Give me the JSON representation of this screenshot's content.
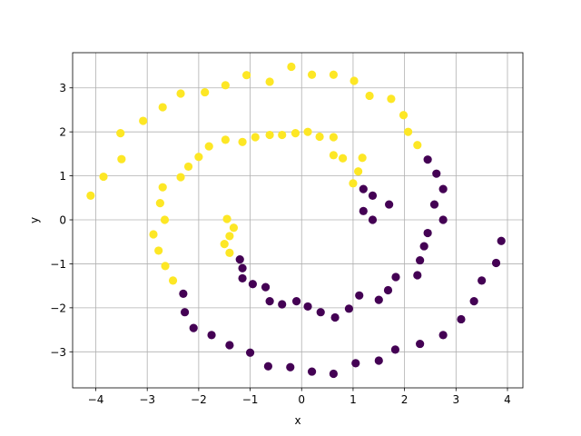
{
  "chart_data": {
    "type": "scatter",
    "title": "",
    "xlabel": "x",
    "ylabel": "y",
    "xlim": [
      -4.45,
      4.3
    ],
    "ylim": [
      -3.82,
      3.8
    ],
    "xticks": [
      -4,
      -3,
      -2,
      -1,
      0,
      1,
      2,
      3,
      4
    ],
    "yticks": [
      -3,
      -2,
      -1,
      0,
      1,
      2,
      3
    ],
    "grid": true,
    "series": [
      {
        "color": "#fde725",
        "points": [
          [
            -4.1,
            0.55
          ],
          [
            -3.85,
            0.98
          ],
          [
            -3.5,
            1.38
          ],
          [
            -3.52,
            1.97
          ],
          [
            -3.08,
            2.25
          ],
          [
            -2.7,
            2.56
          ],
          [
            -2.35,
            2.87
          ],
          [
            -1.88,
            2.9
          ],
          [
            -1.48,
            3.06
          ],
          [
            -1.07,
            3.29
          ],
          [
            -0.62,
            3.14
          ],
          [
            -0.2,
            3.48
          ],
          [
            0.2,
            3.3
          ],
          [
            0.62,
            3.3
          ],
          [
            1.02,
            3.16
          ],
          [
            1.32,
            2.82
          ],
          [
            1.74,
            2.75
          ],
          [
            1.98,
            2.38
          ],
          [
            2.07,
            2.0
          ],
          [
            2.25,
            1.7
          ],
          [
            -2.7,
            0.74
          ],
          [
            -2.35,
            0.97
          ],
          [
            -2.2,
            1.21
          ],
          [
            -2.0,
            1.43
          ],
          [
            -1.8,
            1.67
          ],
          [
            -1.48,
            1.82
          ],
          [
            -1.15,
            1.77
          ],
          [
            -0.9,
            1.88
          ],
          [
            -0.62,
            1.93
          ],
          [
            -0.38,
            1.93
          ],
          [
            -0.12,
            1.97
          ],
          [
            0.12,
            2.0
          ],
          [
            0.35,
            1.89
          ],
          [
            0.62,
            1.88
          ],
          [
            0.8,
            1.4
          ],
          [
            0.62,
            1.47
          ],
          [
            1.0,
            0.83
          ],
          [
            1.1,
            1.1
          ],
          [
            1.18,
            1.41
          ],
          [
            -2.75,
            0.38
          ],
          [
            -2.66,
            0.0
          ],
          [
            -2.88,
            -0.33
          ],
          [
            -2.78,
            -0.7
          ],
          [
            -2.65,
            -1.05
          ],
          [
            -2.5,
            -1.38
          ],
          [
            -1.45,
            0.02
          ],
          [
            -1.32,
            -0.18
          ],
          [
            -1.4,
            -0.37
          ],
          [
            -1.5,
            -0.55
          ],
          [
            -1.4,
            -0.75
          ]
        ]
      },
      {
        "color": "#440154",
        "points": [
          [
            3.88,
            -0.48
          ],
          [
            3.78,
            -0.98
          ],
          [
            3.5,
            -1.38
          ],
          [
            3.35,
            -1.85
          ],
          [
            3.1,
            -2.26
          ],
          [
            2.75,
            -2.62
          ],
          [
            2.3,
            -2.82
          ],
          [
            1.82,
            -2.95
          ],
          [
            1.5,
            -3.2
          ],
          [
            1.05,
            -3.26
          ],
          [
            0.62,
            -3.5
          ],
          [
            0.2,
            -3.45
          ],
          [
            -0.22,
            -3.35
          ],
          [
            -0.65,
            -3.33
          ],
          [
            -1.0,
            -3.02
          ],
          [
            -1.4,
            -2.85
          ],
          [
            -1.75,
            -2.62
          ],
          [
            -2.1,
            -2.46
          ],
          [
            -2.27,
            -2.1
          ],
          [
            -2.3,
            -1.68
          ],
          [
            2.75,
            0.0
          ],
          [
            2.75,
            0.7
          ],
          [
            2.62,
            1.05
          ],
          [
            2.58,
            0.35
          ],
          [
            2.45,
            1.37
          ],
          [
            2.45,
            -0.3
          ],
          [
            2.38,
            -0.6
          ],
          [
            2.3,
            -0.92
          ],
          [
            2.25,
            -1.26
          ],
          [
            1.83,
            -1.3
          ],
          [
            1.68,
            -1.6
          ],
          [
            1.5,
            -1.82
          ],
          [
            1.12,
            -1.72
          ],
          [
            0.92,
            -2.02
          ],
          [
            0.65,
            -2.22
          ],
          [
            0.37,
            -2.1
          ],
          [
            0.12,
            -1.97
          ],
          [
            -0.1,
            -1.85
          ],
          [
            -0.38,
            -1.92
          ],
          [
            -0.62,
            -1.85
          ],
          [
            -0.7,
            -1.53
          ],
          [
            -0.95,
            -1.46
          ],
          [
            -1.15,
            -1.33
          ],
          [
            -1.15,
            -1.1
          ],
          [
            -1.2,
            -0.9
          ],
          [
            1.2,
            0.2
          ],
          [
            1.2,
            0.7
          ],
          [
            1.38,
            0.55
          ],
          [
            1.38,
            0.0
          ],
          [
            1.7,
            0.35
          ]
        ]
      }
    ]
  }
}
